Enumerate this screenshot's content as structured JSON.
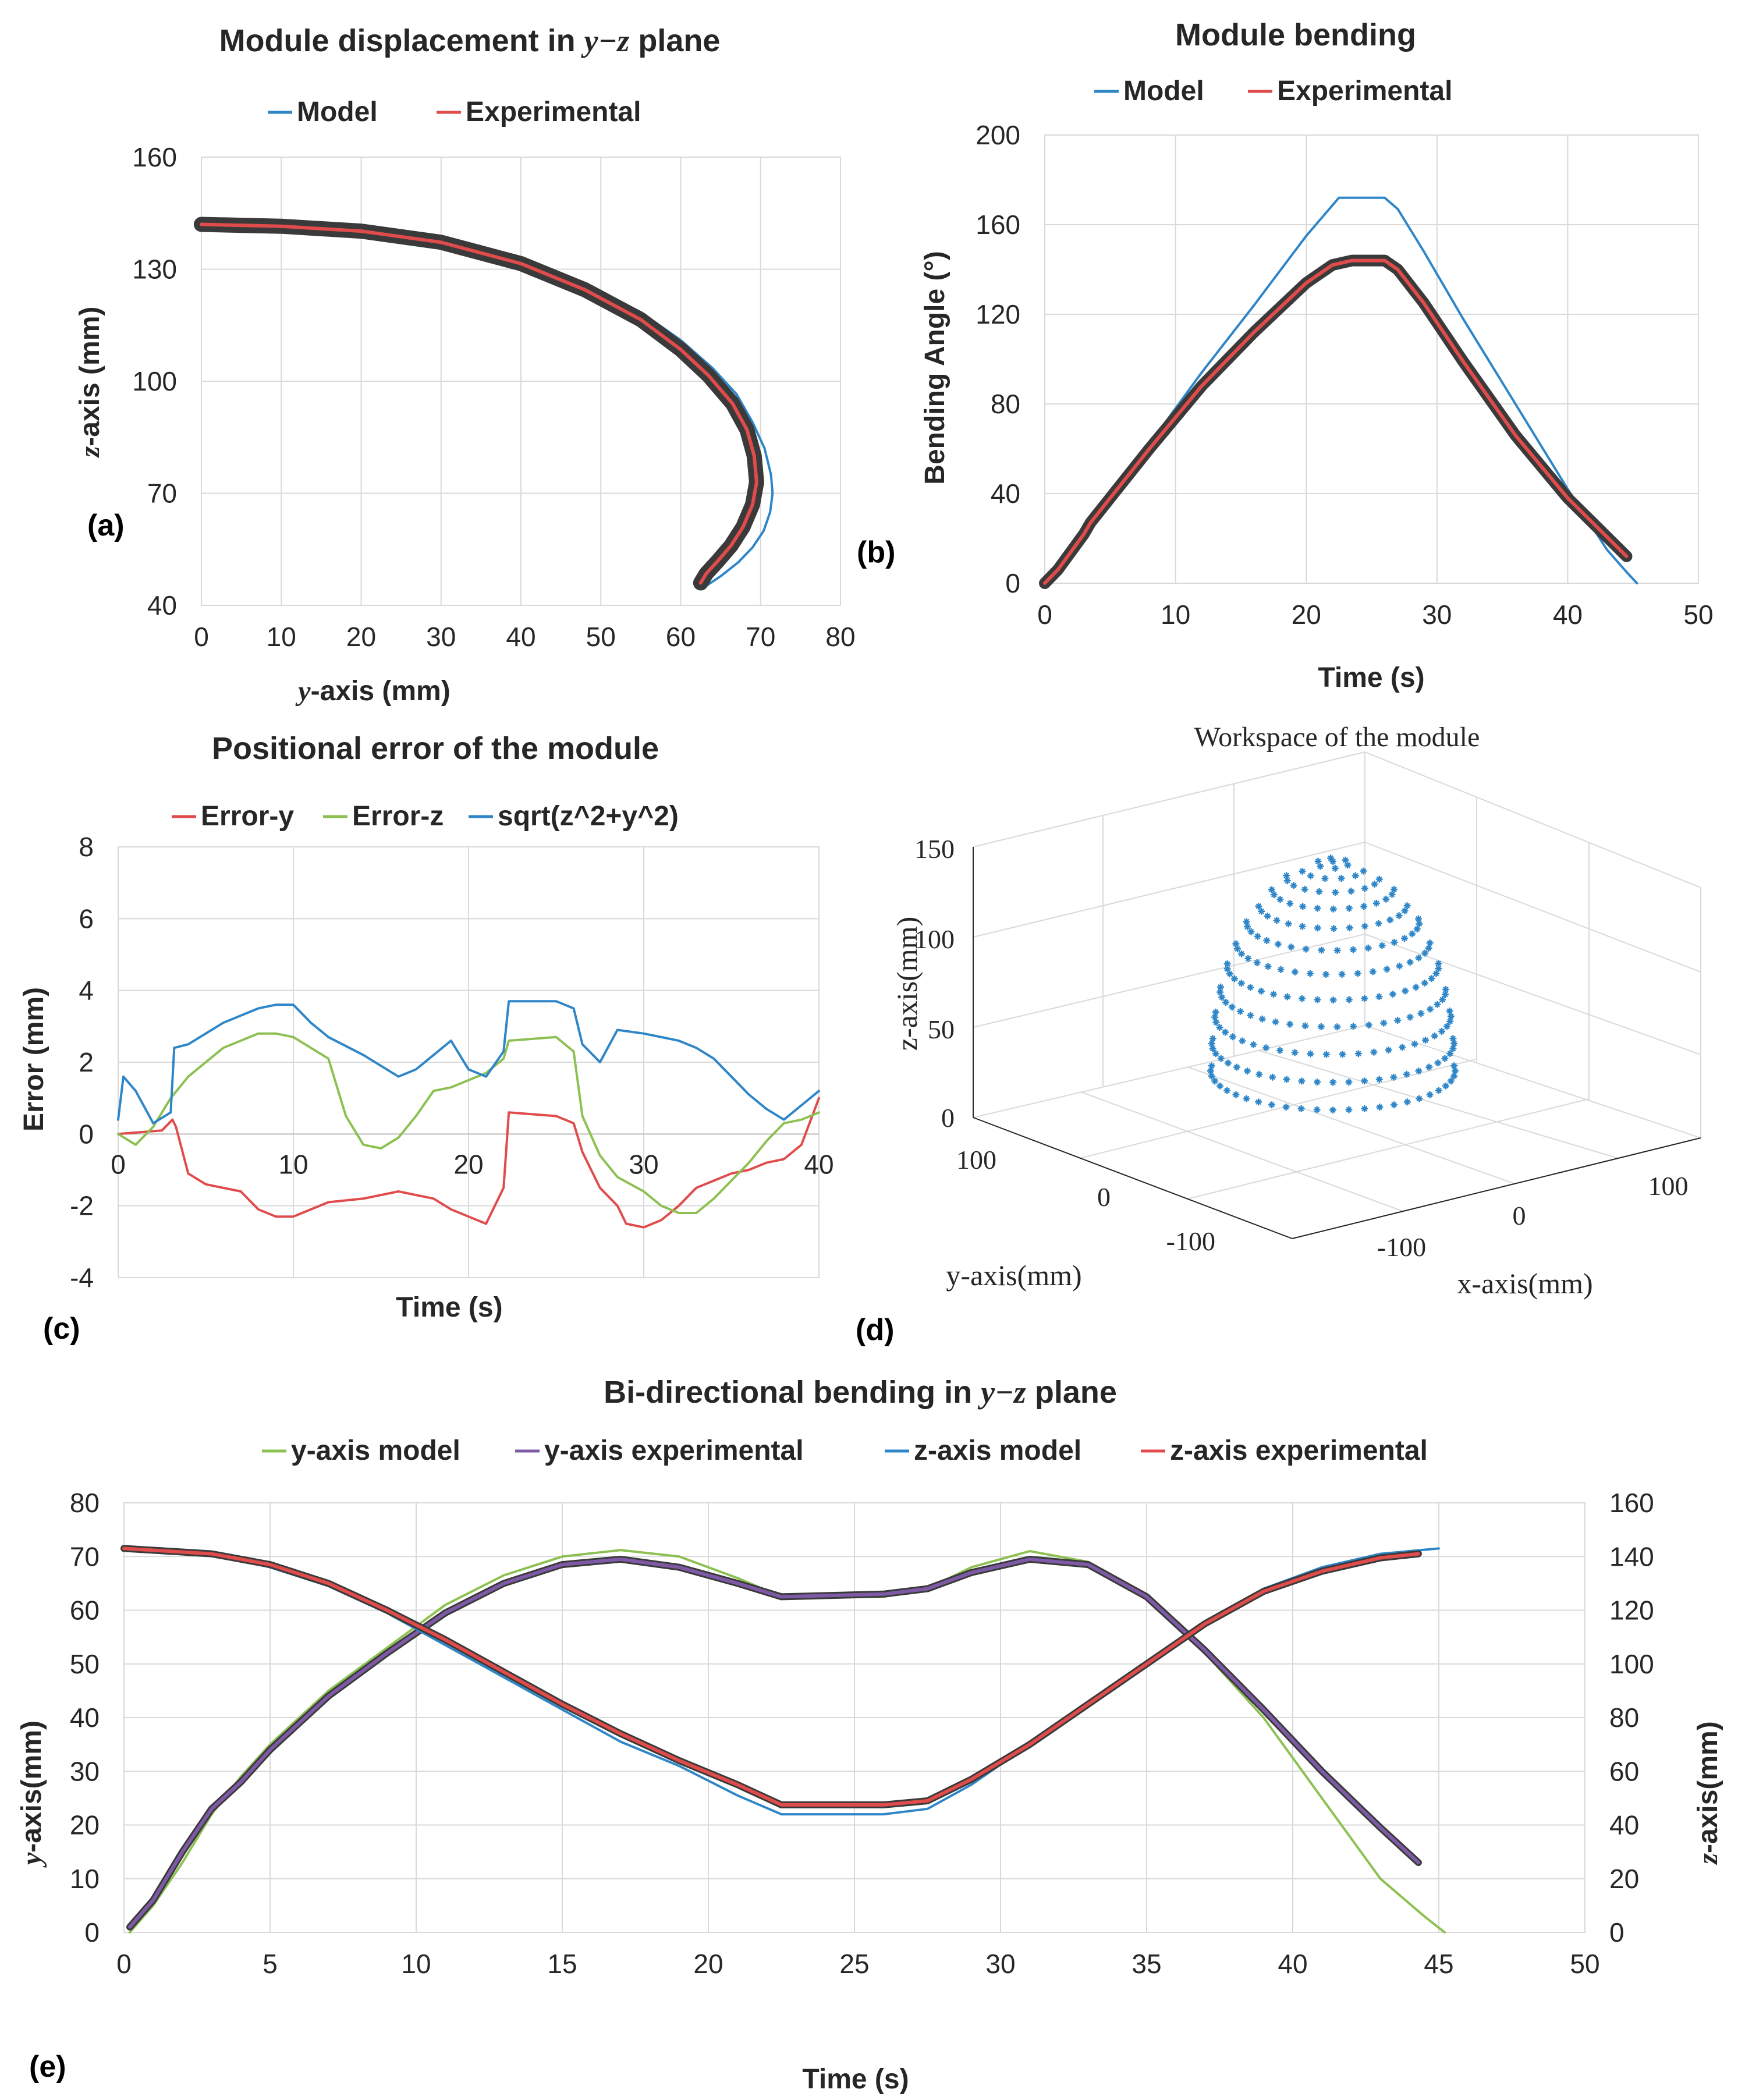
{
  "chart_data": [
    {
      "id": "a",
      "type": "line",
      "panel_label": "(a)",
      "title_pre": "Module displacement in ",
      "title_math": "y−z",
      "title_post": " plane",
      "xlabel_math": "y",
      "xlabel_rest": "-axis (mm)",
      "ylabel_math": "z",
      "ylabel_rest": "-axis (mm)",
      "xlim": [
        0,
        80
      ],
      "ylim": [
        40,
        160
      ],
      "xticks": [
        "0",
        "10",
        "20",
        "30",
        "40",
        "50",
        "60",
        "70",
        "80"
      ],
      "yticks": [
        "40",
        "70",
        "100",
        "130",
        "160"
      ],
      "legend": [
        "Model",
        "Experimental"
      ],
      "series": [
        {
          "name": "Model",
          "color": "#2e86c8",
          "x": [
            0,
            10,
            20,
            30,
            40,
            48,
            55,
            60,
            64,
            67,
            69,
            70.5,
            71.3,
            71.5,
            71.2,
            70.4,
            69.0,
            67.2,
            65.0,
            62.7
          ],
          "y": [
            142,
            141.6,
            140.4,
            137.8,
            132.5,
            126.0,
            118.5,
            111.0,
            103.5,
            96.5,
            89.0,
            82.0,
            75.0,
            70.0,
            65.0,
            60.0,
            55.5,
            51.5,
            47.8,
            44.5
          ]
        },
        {
          "name": "Experimental",
          "color": "#e04b4b",
          "x": [
            0,
            10,
            20,
            30,
            40,
            48,
            55,
            60,
            63.5,
            66.5,
            68.3,
            69.2,
            69.5,
            69.0,
            67.8,
            66.3,
            64.7,
            63.2,
            62.5
          ],
          "y": [
            142,
            141.5,
            140.2,
            137.2,
            131.5,
            124.5,
            116.5,
            108.5,
            101.5,
            94.0,
            87.0,
            80.0,
            73.0,
            67.0,
            61.0,
            56.0,
            52.0,
            48.5,
            46.0
          ]
        }
      ]
    },
    {
      "id": "b",
      "type": "line",
      "panel_label": "(b)",
      "title": "Module bending",
      "xlabel": "Time (s)",
      "ylabel": "Bending Angle (°)",
      "xlim": [
        0,
        50
      ],
      "ylim": [
        0,
        200
      ],
      "xticks": [
        "0",
        "10",
        "20",
        "30",
        "40",
        "50"
      ],
      "yticks": [
        "0",
        "40",
        "80",
        "120",
        "160",
        "200"
      ],
      "legend": [
        "Model",
        "Experimental"
      ],
      "series": [
        {
          "name": "Model",
          "color": "#2e86c8",
          "x": [
            0,
            1,
            3,
            5,
            8,
            12,
            16,
            20,
            22.5,
            23.5,
            26,
            27,
            29,
            32,
            36,
            40,
            43,
            44.5,
            45.3
          ],
          "y": [
            0,
            7,
            25,
            40,
            62,
            94,
            124,
            155,
            172,
            172,
            172,
            167,
            148,
            118,
            80,
            42,
            15,
            5,
            0
          ]
        },
        {
          "name": "Experimental",
          "color": "#e04b4b",
          "x": [
            0,
            1,
            3,
            3.5,
            5,
            8,
            12,
            16,
            20,
            22,
            23.5,
            26,
            27,
            29,
            32,
            36,
            40,
            44.5
          ],
          "y": [
            0,
            6,
            22,
            27,
            38,
            60,
            88,
            112,
            134,
            142,
            144,
            144,
            140,
            125,
            99,
            66,
            38,
            12
          ]
        }
      ]
    },
    {
      "id": "c",
      "type": "line",
      "panel_label": "(c)",
      "title": "Positional error of the module",
      "xlabel": "Time (s)",
      "ylabel": "Error (mm)",
      "xlim": [
        0,
        40
      ],
      "ylim": [
        -4,
        8
      ],
      "xticks": [
        "0",
        "10",
        "20",
        "30",
        "40"
      ],
      "yticks": [
        "-4",
        "-2",
        "0",
        "2",
        "4",
        "6",
        "8"
      ],
      "legend": [
        "Error-y",
        "Error-z",
        "sqrt(z^2+y^2)"
      ],
      "series": [
        {
          "name": "Error-y",
          "color": "#e04b4b",
          "x": [
            0,
            2.5,
            3.1,
            3.3,
            4,
            5,
            7,
            8,
            9,
            10,
            12,
            14,
            16,
            18,
            19,
            20,
            21,
            22,
            22.3,
            25,
            26,
            26.5,
            27.5,
            28.5,
            29,
            30,
            31,
            32,
            33,
            34,
            35,
            36,
            37,
            38,
            39,
            40
          ],
          "y": [
            0,
            0.1,
            0.4,
            0.2,
            -1.1,
            -1.4,
            -1.6,
            -2.1,
            -2.3,
            -2.3,
            -1.9,
            -1.8,
            -1.6,
            -1.8,
            -2.1,
            -2.3,
            -2.5,
            -1.5,
            0.6,
            0.5,
            0.3,
            -0.5,
            -1.5,
            -2.0,
            -2.5,
            -2.6,
            -2.4,
            -2.0,
            -1.5,
            -1.3,
            -1.1,
            -1.0,
            -0.8,
            -0.7,
            -0.3,
            1.0
          ]
        },
        {
          "name": "Error-z",
          "color": "#8cc152",
          "x": [
            0,
            1,
            2,
            3,
            4,
            6,
            8,
            9,
            10,
            12,
            13,
            14,
            15,
            16,
            17,
            18,
            19,
            20,
            21,
            22,
            22.3,
            25,
            26,
            26.5,
            27.5,
            28.5,
            30,
            31,
            32,
            33,
            34,
            35,
            36,
            37,
            38,
            39,
            40
          ],
          "y": [
            0,
            -0.3,
            0.2,
            1.0,
            1.6,
            2.4,
            2.8,
            2.8,
            2.7,
            2.1,
            0.5,
            -0.3,
            -0.4,
            -0.1,
            0.5,
            1.2,
            1.3,
            1.5,
            1.7,
            2.1,
            2.6,
            2.7,
            2.3,
            0.5,
            -0.6,
            -1.2,
            -1.6,
            -2.0,
            -2.2,
            -2.2,
            -1.8,
            -1.3,
            -0.8,
            -0.2,
            0.3,
            0.4,
            0.6
          ]
        },
        {
          "name": "sqrt(z^2+y^2)",
          "color": "#2e86c8",
          "x": [
            0,
            0.3,
            1,
            2,
            3,
            3.2,
            4,
            6,
            8,
            9,
            10,
            11,
            12,
            14,
            16,
            17,
            18,
            19,
            20,
            21,
            22,
            22.3,
            25,
            26,
            26.5,
            27.5,
            28.5,
            30,
            32,
            33,
            34,
            35,
            36,
            37,
            38,
            39,
            40
          ],
          "y": [
            0.4,
            1.6,
            1.2,
            0.3,
            0.6,
            2.4,
            2.5,
            3.1,
            3.5,
            3.6,
            3.6,
            3.1,
            2.7,
            2.2,
            1.6,
            1.8,
            2.2,
            2.6,
            1.8,
            1.6,
            2.3,
            3.7,
            3.7,
            3.5,
            2.5,
            2.0,
            2.9,
            2.8,
            2.6,
            2.4,
            2.1,
            1.6,
            1.1,
            0.7,
            0.4,
            0.8,
            1.2
          ]
        }
      ]
    },
    {
      "id": "d",
      "type": "scatter",
      "panel_label": "(d)",
      "title": "Workspace of the module",
      "xlabel": "x-axis(mm)",
      "ylabel": "y-axis(mm)",
      "zlabel": "z-axis(mm)",
      "xticks": [
        "-100",
        "0",
        "100"
      ],
      "yticks": [
        "100",
        "0",
        "-100"
      ],
      "zticks": [
        "0",
        "50",
        "100",
        "150"
      ],
      "points_color": "#2e86c8",
      "note": "hemispherical workspace, radius about 72 mm, apex at z = 142 mm"
    },
    {
      "id": "e",
      "type": "line",
      "panel_label": "(e)",
      "title_pre": "Bi-directional bending in ",
      "title_math": "y−z",
      "title_post": " plane",
      "xlabel": "Time (s)",
      "ylabel_math": "y",
      "ylabel_rest": "-axis(mm)",
      "y2label_math": "z",
      "y2label_rest": "-axis(mm)",
      "xlim": [
        0,
        50
      ],
      "ylim": [
        0,
        80
      ],
      "y2lim": [
        0,
        160
      ],
      "xticks": [
        "0",
        "5",
        "10",
        "15",
        "20",
        "25",
        "30",
        "35",
        "40",
        "45",
        "50"
      ],
      "yticks": [
        "0",
        "10",
        "20",
        "30",
        "40",
        "50",
        "60",
        "70",
        "80"
      ],
      "y2ticks": [
        "0",
        "20",
        "40",
        "60",
        "80",
        "100",
        "120",
        "140",
        "160"
      ],
      "legend": [
        "y-axis model",
        "y-axis experimental",
        "z-axis model",
        "z-axis experimental"
      ],
      "series": [
        {
          "name": "y-axis model",
          "color": "#8cc152",
          "axis": "left",
          "x": [
            0.2,
            1,
            2,
            3,
            4,
            5,
            7,
            9,
            11,
            13,
            15,
            17,
            19,
            21,
            22.5,
            26,
            27.5,
            29,
            31,
            33,
            35,
            37,
            39,
            41,
            43,
            44.5,
            45.2
          ],
          "y": [
            0,
            5,
            13,
            22,
            29,
            35,
            45,
            53,
            61,
            66.5,
            70,
            71.2,
            70,
            66,
            62.5,
            62.5,
            64,
            68,
            71,
            69,
            62,
            52,
            40,
            25,
            10,
            3,
            0
          ]
        },
        {
          "name": "y-axis experimental",
          "color": "#7e5aa6",
          "axis": "left",
          "x": [
            0.2,
            1,
            2,
            3,
            3.3,
            4,
            5,
            7,
            9,
            11,
            13,
            15,
            17,
            19,
            21,
            22.5,
            26,
            27.5,
            29,
            31,
            33,
            35,
            37,
            39,
            41,
            43,
            44.3
          ],
          "y": [
            1,
            6,
            15,
            23,
            24.5,
            28,
            34,
            44,
            52,
            59.5,
            65,
            68.5,
            69.5,
            68,
            65,
            62.5,
            63,
            64,
            67,
            69.5,
            68.5,
            62.5,
            52.5,
            41.5,
            30,
            19.5,
            13
          ]
        },
        {
          "name": "z-axis model",
          "color": "#2e86c8",
          "axis": "right",
          "x": [
            0,
            3,
            5,
            7,
            9,
            11,
            13,
            15,
            17,
            19,
            21,
            22.5,
            26,
            27.5,
            29,
            31,
            33,
            35,
            37,
            39,
            41,
            43,
            45
          ],
          "y": [
            143,
            141,
            136,
            129,
            119,
            107,
            95,
            83,
            71,
            62,
            51,
            44,
            44,
            46,
            55,
            70,
            86,
            101,
            115,
            128,
            136,
            141,
            143
          ]
        },
        {
          "name": "z-axis experimental",
          "color": "#e04b4b",
          "axis": "right",
          "x": [
            0,
            3,
            5,
            7,
            9,
            11,
            13,
            15,
            17,
            19,
            21,
            22.5,
            26,
            27.5,
            29,
            31,
            33,
            35,
            37,
            39,
            41,
            43,
            44.3
          ],
          "y": [
            143,
            141,
            137,
            130,
            120,
            109,
            97,
            85,
            74,
            64,
            55,
            47.5,
            47.5,
            49,
            57,
            70,
            85,
            100,
            115,
            127,
            134.5,
            139.5,
            141
          ]
        }
      ]
    }
  ]
}
